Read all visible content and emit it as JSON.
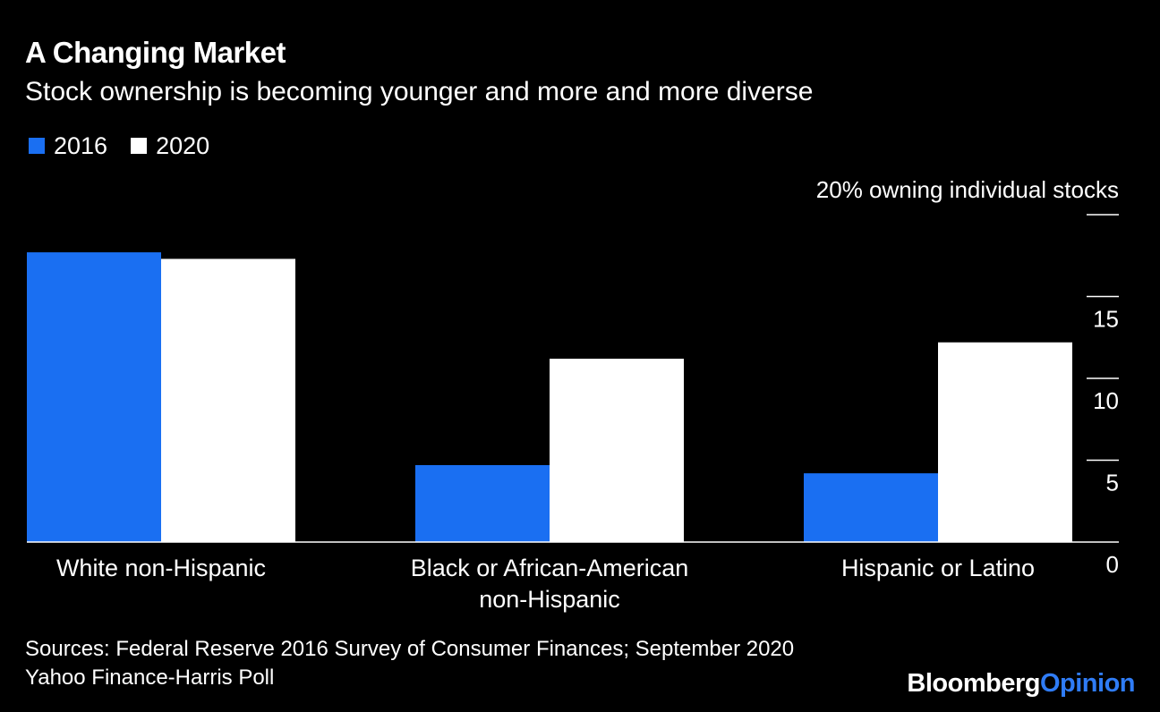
{
  "header": {
    "title": "A Changing Market",
    "subtitle": "Stock ownership is becoming younger and more and more diverse"
  },
  "colors": {
    "background": "#000000",
    "series_2016": "#1a6ff2",
    "series_2020": "#ffffff",
    "axis": "#ffffff",
    "brand_accent": "#2f7cf6"
  },
  "chart_data": {
    "type": "bar",
    "categories": [
      "White non-Hispanic",
      "Black or African-American non-Hispanic",
      "Hispanic or Latino"
    ],
    "category_lines": [
      [
        "White non-Hispanic"
      ],
      [
        "Black or African-American",
        "non-Hispanic"
      ],
      [
        "Hispanic or Latino"
      ]
    ],
    "series": [
      {
        "name": "2016",
        "values": [
          17.7,
          4.7,
          4.2
        ]
      },
      {
        "name": "2020",
        "values": [
          17.3,
          11.2,
          12.2
        ]
      }
    ],
    "ylabel": "20% owning individual stocks",
    "yticks": [
      {
        "value": 20,
        "label": ""
      },
      {
        "value": 15,
        "label": "15"
      },
      {
        "value": 10,
        "label": "10"
      },
      {
        "value": 5,
        "label": "5"
      },
      {
        "value": 0,
        "label": "0"
      }
    ],
    "ylim": [
      0,
      20
    ],
    "grid": false,
    "legend_position": "top-left"
  },
  "footer": {
    "source_lines": [
      "Sources: Federal Reserve 2016 Survey of Consumer Finances; September 2020",
      "Yahoo Finance-Harris Poll"
    ],
    "brand_part1": "Bloomberg",
    "brand_part2": "Opinion"
  }
}
